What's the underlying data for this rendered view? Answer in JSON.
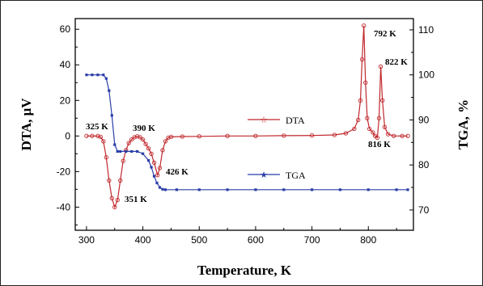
{
  "chart_data": {
    "type": "line",
    "xlabel": "Temperature, K",
    "ylabel_left": "DTA, μV",
    "ylabel_right": "TGA, %",
    "xlim": [
      280,
      880
    ],
    "ylim_left": [
      -53,
      66
    ],
    "ylim_right": [
      65.5,
      112.5
    ],
    "x_ticks": [
      300,
      400,
      500,
      600,
      700,
      800
    ],
    "y_ticks_left": [
      -40,
      -20,
      0,
      20,
      40,
      60
    ],
    "y_ticks_right": [
      70,
      80,
      90,
      100,
      110
    ],
    "colors": {
      "dta": "#c0282d",
      "tga": "#2b3ea8",
      "axis": "#000000"
    },
    "legend": [
      {
        "key": "dta",
        "label": "DTA"
      },
      {
        "key": "tga",
        "label": "TGA"
      }
    ],
    "series": [
      {
        "name": "DTA",
        "axis": "left",
        "marker": "star",
        "x": [
          300,
          310,
          320,
          325,
          330,
          335,
          340,
          345,
          350,
          355,
          360,
          365,
          370,
          375,
          380,
          385,
          390,
          395,
          400,
          405,
          410,
          415,
          420,
          426,
          430,
          435,
          440,
          445,
          450,
          470,
          500,
          550,
          600,
          650,
          700,
          740,
          760,
          775,
          782,
          786,
          789,
          792,
          795,
          798,
          802,
          808,
          812,
          816,
          819,
          822,
          825,
          829,
          835,
          845,
          860,
          870
        ],
        "y": [
          0,
          0,
          0,
          -0.5,
          -3,
          -12,
          -25,
          -35,
          -40,
          -36,
          -25,
          -14,
          -8,
          -4,
          -2,
          -0.7,
          -0.2,
          -0.7,
          -2,
          -4.5,
          -7,
          -10,
          -15,
          -22,
          -18,
          -8,
          -3,
          -1,
          -0.5,
          -0.3,
          -0.2,
          0,
          0,
          0.2,
          0.3,
          0.6,
          1.5,
          4,
          9,
          20,
          43,
          62,
          30,
          10,
          4,
          2,
          0,
          -1,
          10,
          39,
          20,
          5,
          1,
          0,
          0,
          0
        ]
      },
      {
        "name": "TGA",
        "axis": "right",
        "marker": "star",
        "x": [
          300,
          310,
          320,
          330,
          335,
          340,
          345,
          350,
          355,
          360,
          370,
          380,
          390,
          400,
          410,
          415,
          420,
          425,
          430,
          435,
          440,
          460,
          500,
          550,
          600,
          650,
          700,
          750,
          800,
          850,
          870
        ],
        "y": [
          100,
          100,
          100,
          100,
          99.2,
          96.5,
          91,
          84.5,
          83,
          83,
          83,
          83,
          83,
          82.5,
          81,
          79.5,
          77.5,
          76,
          75,
          74.6,
          74.5,
          74.5,
          74.5,
          74.5,
          74.5,
          74.5,
          74.5,
          74.5,
          74.5,
          74.5,
          74.5
        ]
      }
    ],
    "annotations": [
      {
        "text": "325 K"
      },
      {
        "text": "390 K"
      },
      {
        "text": "426 K"
      },
      {
        "text": "351 K"
      },
      {
        "text": "792 K"
      },
      {
        "text": "822 K"
      },
      {
        "text": "816 K"
      }
    ]
  }
}
